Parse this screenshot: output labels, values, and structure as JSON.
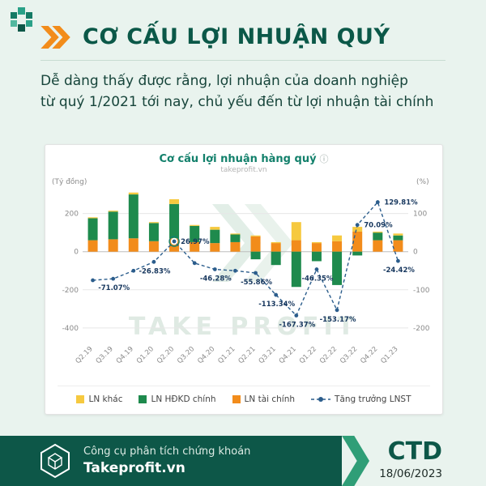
{
  "page": {
    "bg": "#e9f3ee"
  },
  "header": {
    "title": "CƠ CẤU LỢI NHUẬN QUÝ",
    "subtitle_line1": "Dễ dàng thấy được rằng, lợi nhuận của doanh nghiệp",
    "subtitle_line2": "từ quý 1/2021 tới nay, chủ yếu đến từ lợi nhuận tài chính"
  },
  "chart_card": {
    "title": "Cơ cấu lợi nhuận hàng quý",
    "info_icon": "ⓘ",
    "watermark_small": "takeprofit.vn",
    "watermark_big": "TAKE PROFIT"
  },
  "chart_data": {
    "type": "bar",
    "title": "Cơ cấu lợi nhuận hàng quý",
    "categories": [
      "Q2.19",
      "Q3.19",
      "Q4.19",
      "Q1.20",
      "Q2.20",
      "Q3.20",
      "Q4.20",
      "Q1.21",
      "Q2.21",
      "Q3.21",
      "Q4.21",
      "Q1.22",
      "Q2.22",
      "Q3.22",
      "Q4.22",
      "Q1.23"
    ],
    "series": [
      {
        "name": "LN tài chính",
        "color_key": "bar_orange",
        "values": [
          60,
          65,
          70,
          55,
          70,
          50,
          45,
          50,
          80,
          45,
          60,
          45,
          55,
          105,
          60,
          60
        ]
      },
      {
        "name": "LN HĐKD chính",
        "color_key": "bar_green",
        "values": [
          115,
          145,
          230,
          95,
          180,
          85,
          70,
          40,
          -40,
          -70,
          -185,
          -50,
          -175,
          -20,
          40,
          25
        ]
      },
      {
        "name": "LN khác",
        "color_key": "bar_yellow",
        "values": [
          5,
          5,
          10,
          5,
          25,
          5,
          15,
          5,
          5,
          5,
          95,
          5,
          30,
          25,
          5,
          10
        ]
      }
    ],
    "line_series": {
      "name": "Tăng trưởng LNST",
      "axis": "right",
      "values": [
        -75,
        -71.07,
        -50,
        -26.83,
        26.97,
        -30,
        -46.28,
        -50,
        -55.86,
        -113.34,
        -167.37,
        -46.35,
        -153.17,
        70.09,
        129.81,
        -24.42
      ],
      "labels": [
        null,
        "-71.07%",
        null,
        "-26.83%",
        "26.97%",
        null,
        "-46.28%",
        null,
        "-55.86%",
        "-113.34%",
        "-167.37%",
        "-46.35%",
        "-153.17%",
        "70.09%",
        "129.81%",
        "-24.42%"
      ],
      "highlight_index": 4
    },
    "left_axis": {
      "label": "(Tỷ đồng)",
      "ticks": [
        200,
        0,
        -200,
        -400
      ],
      "min": -460,
      "max": 330
    },
    "right_axis": {
      "label": "(%)",
      "ticks": [
        100,
        0,
        -100,
        -200
      ],
      "min": -230,
      "max": 165
    },
    "grid": true,
    "legend_position": "bottom"
  },
  "legend": [
    {
      "label": "LN khác",
      "marker": "square",
      "color_key": "bar_yellow"
    },
    {
      "label": "LN HĐKD chính",
      "marker": "square",
      "color_key": "bar_green"
    },
    {
      "label": "LN tài chính",
      "marker": "square",
      "color_key": "bar_orange"
    },
    {
      "label": "Tăng trưởng LNST",
      "marker": "dashed-line-dot",
      "color_key": "line_navy"
    }
  ],
  "footer": {
    "tagline": "Công cụ phân tích chứng khoán",
    "brand": "Takeprofit.vn",
    "ticker": "CTD",
    "date": "18/06/2023"
  },
  "colors": {
    "bg_mint": "#e9f3ee",
    "accent_orange": "#f28c1b",
    "title_green": "#0b5848",
    "chart_title_teal": "#12806b",
    "bar_green": "#1e8a4d",
    "bar_orange": "#f28c1b",
    "bar_yellow": "#f6c93f",
    "line_navy": "#2b5d8c",
    "label_navy": "#17375e",
    "footer_dark": "#0d5748",
    "footer_accent": "#2f9e77",
    "axis_gray": "#8a8a8a"
  }
}
